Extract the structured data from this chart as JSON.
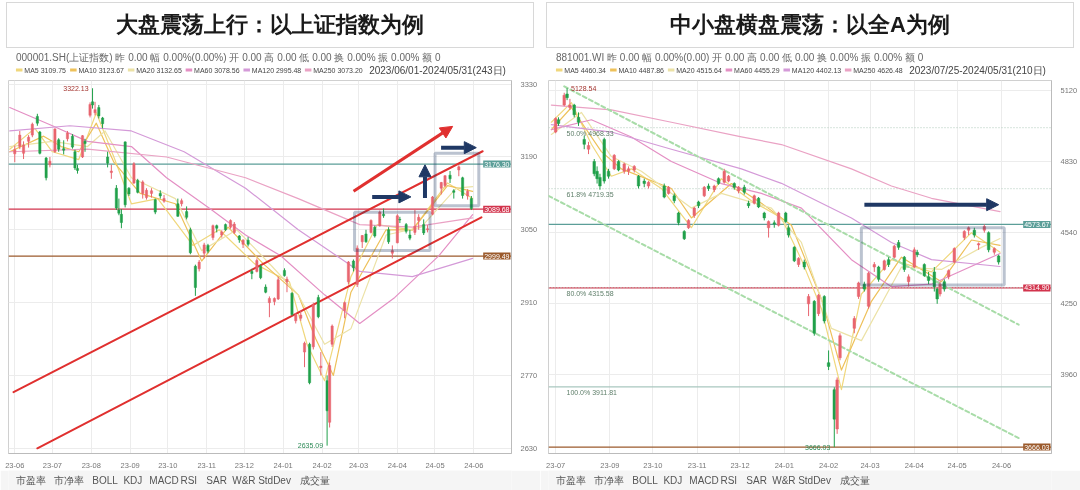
{
  "chart_data": [
    {
      "type": "candlestick",
      "title": "大盘震荡上行：以上证指数为例",
      "annotations": [
        "000001.SH(上证指数) 昨 0.00 幅 0.00%(0.00%) 开 0.00 高 0.00 低 0.00 换 0.00% 振 0.00% 额 0",
        "2023/06/01-2024/05/31(243日)",
        "市盈率",
        "市净率",
        "BOLL",
        "KDJ",
        "MACD",
        "RSI",
        "SAR",
        "W&R",
        "StdDev",
        "成交量",
        {
          "text": "3322.13",
          "x": "2023-08-02",
          "y": 3322.13
        },
        {
          "text": "2635.09",
          "x": "2024-02-05",
          "y": 2635.09
        }
      ],
      "x": [
        "2023-06-01",
        "2023-06-05",
        "2023-06-08",
        "2023-06-12",
        "2023-06-15",
        "2023-06-19",
        "2023-06-21",
        "2023-06-26",
        "2023-06-29",
        "2023-07-03",
        "2023-07-06",
        "2023-07-10",
        "2023-07-13",
        "2023-07-17",
        "2023-07-19",
        "2023-07-21",
        "2023-07-25",
        "2023-07-27",
        "2023-07-31",
        "2023-08-02",
        "2023-08-04",
        "2023-08-07",
        "2023-08-10",
        "2023-08-14",
        "2023-08-17",
        "2023-08-21",
        "2023-08-23",
        "2023-08-25",
        "2023-08-28",
        "2023-08-31",
        "2023-09-04",
        "2023-09-07",
        "2023-09-11",
        "2023-09-14",
        "2023-09-18",
        "2023-09-21",
        "2023-09-25",
        "2023-09-28",
        "2023-10-09",
        "2023-10-12",
        "2023-10-16",
        "2023-10-19",
        "2023-10-23",
        "2023-10-26",
        "2023-10-30",
        "2023-11-02",
        "2023-11-06",
        "2023-11-09",
        "2023-11-13",
        "2023-11-16",
        "2023-11-20",
        "2023-11-23",
        "2023-11-27",
        "2023-11-30",
        "2023-12-04",
        "2023-12-07",
        "2023-12-11",
        "2023-12-14",
        "2023-12-18",
        "2023-12-21",
        "2023-12-25",
        "2023-12-28",
        "2024-01-02",
        "2024-01-04",
        "2024-01-08",
        "2024-01-11",
        "2024-01-15",
        "2024-01-18",
        "2024-01-22",
        "2024-01-25",
        "2024-01-29",
        "2024-01-31",
        "2024-02-05",
        "2024-02-07",
        "2024-02-09",
        "2024-02-19",
        "2024-02-22",
        "2024-02-26",
        "2024-02-29",
        "2024-03-04",
        "2024-03-07",
        "2024-03-11",
        "2024-03-14",
        "2024-03-18",
        "2024-03-21",
        "2024-03-25",
        "2024-03-28",
        "2024-04-01",
        "2024-04-03",
        "2024-04-08",
        "2024-04-11",
        "2024-04-15",
        "2024-04-18",
        "2024-04-22",
        "2024-04-25",
        "2024-04-29",
        "2024-05-06",
        "2024-05-09",
        "2024-05-13",
        "2024-05-16",
        "2024-05-20",
        "2024-05-23",
        "2024-05-27",
        "2024-05-30"
      ],
      "ohlc": [
        [
          3196,
          3212,
          3180,
          3204
        ],
        [
          3210,
          3240,
          3205,
          3232
        ],
        [
          3197,
          3220,
          3186,
          3213
        ],
        [
          3220,
          3232,
          3208,
          3228
        ],
        [
          3232,
          3256,
          3228,
          3253
        ],
        [
          3268,
          3273,
          3250,
          3255
        ],
        [
          3238,
          3240,
          3195,
          3197
        ],
        [
          3188,
          3190,
          3145,
          3150
        ],
        [
          3175,
          3190,
          3170,
          3182
        ],
        [
          3200,
          3245,
          3198,
          3244
        ],
        [
          3223,
          3226,
          3200,
          3205
        ],
        [
          3206,
          3222,
          3195,
          3203
        ],
        [
          3225,
          3240,
          3220,
          3236
        ],
        [
          3230,
          3234,
          3206,
          3209
        ],
        [
          3200,
          3204,
          3165,
          3169
        ],
        [
          3168,
          3175,
          3158,
          3164
        ],
        [
          3190,
          3232,
          3188,
          3231
        ],
        [
          3220,
          3225,
          3200,
          3216
        ],
        [
          3270,
          3295,
          3266,
          3291
        ],
        [
          3296,
          3322.13,
          3283,
          3290
        ],
        [
          3275,
          3296,
          3270,
          3281
        ],
        [
          3285,
          3290,
          3264,
          3269
        ],
        [
          3265,
          3267,
          3245,
          3254
        ],
        [
          3190,
          3200,
          3170,
          3178
        ],
        [
          3160,
          3175,
          3148,
          3163
        ],
        [
          3130,
          3136,
          3088,
          3092
        ],
        [
          3088,
          3110,
          3078,
          3082
        ],
        [
          3080,
          3090,
          3053,
          3064
        ],
        [
          3219,
          3220,
          3093,
          3098
        ],
        [
          3130,
          3132,
          3115,
          3119
        ],
        [
          3140,
          3180,
          3138,
          3177
        ],
        [
          3145,
          3148,
          3120,
          3122
        ],
        [
          3120,
          3145,
          3110,
          3142
        ],
        [
          3112,
          3130,
          3108,
          3126
        ],
        [
          3120,
          3130,
          3112,
          3125
        ],
        [
          3108,
          3110,
          3080,
          3084
        ],
        [
          3120,
          3126,
          3110,
          3115
        ],
        [
          3105,
          3117,
          3102,
          3110
        ],
        [
          3100,
          3110,
          3075,
          3076
        ],
        [
          3100,
          3110,
          3095,
          3106
        ],
        [
          3085,
          3095,
          3070,
          3074
        ],
        [
          3050,
          3054,
          3003,
          3006
        ],
        [
          2980,
          2983,
          2923,
          2939
        ],
        [
          2975,
          2992,
          2970,
          2988
        ],
        [
          3005,
          3025,
          2995,
          3021
        ],
        [
          3020,
          3023,
          3005,
          3009
        ],
        [
          3035,
          3060,
          3030,
          3058
        ],
        [
          3058,
          3060,
          3045,
          3053
        ],
        [
          3040,
          3049,
          3035,
          3046
        ],
        [
          3060,
          3062,
          3048,
          3050
        ],
        [
          3055,
          3070,
          3052,
          3068
        ],
        [
          3045,
          3065,
          3042,
          3061
        ],
        [
          3038,
          3040,
          3025,
          3031
        ],
        [
          3022,
          3032,
          3015,
          3030
        ],
        [
          3030,
          3036,
          3018,
          3022
        ],
        [
          2970,
          2975,
          2955,
          2966
        ],
        [
          2970,
          2995,
          2968,
          2991
        ],
        [
          2980,
          2983,
          2955,
          2958
        ],
        [
          2940,
          2945,
          2928,
          2930
        ],
        [
          2910,
          2922,
          2882,
          2918
        ],
        [
          2912,
          2920,
          2905,
          2918
        ],
        [
          2917,
          2960,
          2915,
          2954
        ],
        [
          2972,
          2976,
          2960,
          2962
        ],
        [
          2950,
          2960,
          2930,
          2955
        ],
        [
          2928,
          2930,
          2885,
          2887
        ],
        [
          2875,
          2890,
          2870,
          2886
        ],
        [
          2880,
          2895,
          2875,
          2886
        ],
        [
          2815,
          2835,
          2786,
          2832
        ],
        [
          2830,
          2833,
          2753,
          2756
        ],
        [
          2825,
          2910,
          2820,
          2906
        ],
        [
          2920,
          2925,
          2880,
          2883
        ],
        [
          2785,
          2815,
          2770,
          2788
        ],
        [
          2760,
          2770,
          2635.09,
          2702
        ],
        [
          2680,
          2795,
          2670,
          2789
        ],
        [
          2830,
          2868,
          2825,
          2865
        ],
        [
          2895,
          2912,
          2880,
          2910
        ],
        [
          2950,
          2990,
          2945,
          2988
        ],
        [
          2990,
          2993,
          2970,
          2977
        ],
        [
          2945,
          3020,
          2940,
          3015
        ],
        [
          3027,
          3040,
          3015,
          3039
        ],
        [
          3042,
          3050,
          3025,
          3027
        ],
        [
          3045,
          3070,
          3043,
          3068
        ],
        [
          3055,
          3058,
          3035,
          3038
        ],
        [
          3058,
          3087,
          3056,
          3084
        ],
        [
          3080,
          3091,
          3073,
          3077
        ],
        [
          3050,
          3055,
          3023,
          3027
        ],
        [
          3005,
          3020,
          2995,
          3010
        ],
        [
          3025,
          3080,
          3024,
          3077
        ],
        [
          3070,
          3075,
          3063,
          3069
        ],
        [
          3060,
          3063,
          3043,
          3047
        ],
        [
          3040,
          3050,
          3030,
          3034
        ],
        [
          3045,
          3090,
          3040,
          3057
        ],
        [
          3068,
          3080,
          3050,
          3074
        ],
        [
          3060,
          3070,
          3040,
          3044
        ],
        [
          3050,
          3059,
          3045,
          3052
        ],
        [
          3080,
          3115,
          3078,
          3113
        ],
        [
          3130,
          3142,
          3118,
          3141
        ],
        [
          3135,
          3155,
          3132,
          3154
        ],
        [
          3155,
          3163,
          3140,
          3148
        ],
        [
          3125,
          3128,
          3110,
          3122
        ],
        [
          3165,
          3174,
          3153,
          3171
        ],
        [
          3150,
          3152,
          3110,
          3116
        ],
        [
          3115,
          3128,
          3108,
          3124
        ],
        [
          3110,
          3115,
          3088,
          3091
        ]
      ],
      "colors": [
        "#e8656f",
        "#e8656f",
        "#e8656f",
        "#e8656f",
        "#e8656f",
        "#20a04a",
        "#20a04a",
        "#20a04a",
        "#e8656f",
        "#e8656f",
        "#20a04a",
        "#20a04a",
        "#e8656f",
        "#20a04a",
        "#20a04a",
        "#20a04a",
        "#e8656f",
        "#20a04a",
        "#e8656f",
        "#20a04a",
        "#e8656f",
        "#20a04a",
        "#20a04a",
        "#20a04a",
        "#e8656f",
        "#20a04a",
        "#20a04a",
        "#20a04a",
        "#20a04a",
        "#20a04a",
        "#e8656f",
        "#20a04a",
        "#e8656f",
        "#e8656f",
        "#e8656f",
        "#20a04a",
        "#20a04a",
        "#e8656f",
        "#20a04a",
        "#e8656f",
        "#20a04a",
        "#20a04a",
        "#20a04a",
        "#e8656f",
        "#e8656f",
        "#20a04a",
        "#e8656f",
        "#20a04a",
        "#e8656f",
        "#20a04a",
        "#e8656f",
        "#e8656f",
        "#20a04a",
        "#e8656f",
        "#20a04a",
        "#20a04a",
        "#e8656f",
        "#20a04a",
        "#20a04a",
        "#e8656f",
        "#e8656f",
        "#e8656f",
        "#20a04a",
        "#e8656f",
        "#20a04a",
        "#e8656f",
        "#e8656f",
        "#e8656f",
        "#20a04a",
        "#e8656f",
        "#20a04a",
        "#e8656f",
        "#20a04a",
        "#e8656f",
        "#e8656f",
        "#e8656f",
        "#e8656f",
        "#20a04a",
        "#e8656f",
        "#e8656f",
        "#20a04a",
        "#e8656f",
        "#20a04a",
        "#e8656f",
        "#20a04a",
        "#20a04a",
        "#e8656f",
        "#e8656f",
        "#20a04a",
        "#20a04a",
        "#20a04a",
        "#e8656f",
        "#e8656f",
        "#20a04a",
        "#e8656f",
        "#e8656f",
        "#e8656f",
        "#e8656f",
        "#20a04a",
        "#20a04a",
        "#e8656f",
        "#20a04a",
        "#e8656f",
        "#20a04a"
      ],
      "series": [
        {
          "name": "MA5 3109.75",
          "type": "line",
          "color": "#f0d77c",
          "x": [
            "2023-05-28",
            "2023-06-17",
            "2023-07-01",
            "2023-07-22",
            "2023-08-05",
            "2023-08-19",
            "2023-09-02",
            "2023-09-23",
            "2023-10-21",
            "2023-11-11",
            "2023-12-09",
            "2024-01-06",
            "2024-01-20",
            "2024-02-03",
            "2024-02-24",
            "2024-03-16",
            "2024-04-13",
            "2024-05-11",
            "2024-05-31"
          ],
          "values": [
            3205,
            3245,
            3200,
            3185,
            3275,
            3190,
            3100,
            3110,
            3020,
            3050,
            2985,
            2950,
            2830,
            2760,
            2960,
            3060,
            3050,
            3140,
            3110
          ]
        },
        {
          "name": "MA10 3123.67",
          "type": "line",
          "color": "#eec15a",
          "x": [
            "2023-05-28",
            "2023-06-24",
            "2023-07-08",
            "2023-07-22",
            "2023-08-05",
            "2023-08-19",
            "2023-09-09",
            "2023-10-07",
            "2023-10-28",
            "2023-11-18",
            "2023-12-16",
            "2024-01-13",
            "2024-01-27",
            "2024-02-10",
            "2024-02-24",
            "2024-03-23",
            "2024-04-13",
            "2024-05-11",
            "2024-05-31"
          ],
          "values": [
            3200,
            3230,
            3210,
            3200,
            3255,
            3180,
            3120,
            3100,
            2990,
            3055,
            2985,
            2925,
            2840,
            2770,
            2930,
            3050,
            3050,
            3135,
            3124
          ]
        },
        {
          "name": "MA20 3132.65",
          "type": "line",
          "color": "#ece2a6",
          "x": [
            "2023-05-28",
            "2023-07-01",
            "2023-07-29",
            "2023-08-12",
            "2023-09-02",
            "2023-10-07",
            "2023-10-28",
            "2023-11-25",
            "2023-12-23",
            "2024-01-13",
            "2024-02-03",
            "2024-02-24",
            "2024-03-23",
            "2024-04-20",
            "2024-05-18",
            "2024-05-31"
          ],
          "values": [
            3210,
            3220,
            3210,
            3240,
            3150,
            3110,
            3010,
            3050,
            2980,
            2925,
            2830,
            2860,
            3040,
            3055,
            3130,
            3133
          ]
        },
        {
          "name": "MA60 3078.56",
          "type": "line",
          "color": "#e48fc4",
          "x": [
            "2023-05-28",
            "2023-07-01",
            "2023-07-29",
            "2023-09-02",
            "2023-09-30",
            "2023-11-04",
            "2023-12-02",
            "2023-12-30",
            "2024-02-03",
            "2024-03-02",
            "2024-03-30",
            "2024-05-04",
            "2024-05-31"
          ],
          "values": [
            3285,
            3250,
            3220,
            3210,
            3150,
            3090,
            3040,
            3000,
            2925,
            2870,
            2920,
            3000,
            3079
          ]
        },
        {
          "name": "MA120 2995.48",
          "type": "line",
          "color": "#d49ad8",
          "x": [
            "2023-05-28",
            "2023-07-15",
            "2023-09-02",
            "2023-10-14",
            "2023-12-02",
            "2024-01-13",
            "2024-03-02",
            "2024-04-13",
            "2024-05-31"
          ],
          "values": [
            3240,
            3250,
            3240,
            3200,
            3130,
            3050,
            2970,
            2960,
            2995
          ]
        },
        {
          "name": "MA250 3073.20",
          "type": "line",
          "color": "#eaa2c4",
          "x": [
            "2023-05-28",
            "2023-07-29",
            "2023-09-30",
            "2023-12-02",
            "2024-01-13",
            "2024-03-02",
            "2024-04-13",
            "2024-05-31"
          ],
          "values": [
            3200,
            3205,
            3190,
            3150,
            3110,
            3060,
            3055,
            3073
          ]
        },
        {
          "type": "line",
          "color": "#e0302f",
          "x": [
            "2023-05-31",
            "2024-06-08"
          ],
          "values": [
            2738,
            3201
          ]
        },
        {
          "type": "line",
          "color": "#e0302f",
          "x": [
            "2023-06-19",
            "2024-06-07"
          ],
          "values": [
            2630,
            3074
          ]
        }
      ],
      "xlim": [
        "2023-05-27",
        "2024-07-01"
      ],
      "xticks": [
        {
          "value": "2023-06-01",
          "label": "23-06"
        },
        {
          "value": "2023-07-01",
          "label": "23-07"
        },
        {
          "value": "2023-08-01",
          "label": "23-08"
        },
        {
          "value": "2023-09-01",
          "label": "23-09"
        },
        {
          "value": "2023-10-01",
          "label": "23-10"
        },
        {
          "value": "2023-11-01",
          "label": "23-11"
        },
        {
          "value": "2023-12-01",
          "label": "23-12"
        },
        {
          "value": "2024-01-01",
          "label": "24-01"
        },
        {
          "value": "2024-02-01",
          "label": "24-02"
        },
        {
          "value": "2024-03-01",
          "label": "24-03"
        },
        {
          "value": "2024-04-01",
          "label": "24-04"
        },
        {
          "value": "2024-05-01",
          "label": "24-05"
        },
        {
          "value": "2024-06-01",
          "label": "24-06"
        }
      ],
      "ylim": [
        2620,
        3337
      ],
      "yticks": [
        2630,
        2770,
        2910,
        3050,
        3190,
        3330
      ],
      "ref_lines": [
        {
          "axis": "y",
          "value": 3176.3,
          "label": "3176.30",
          "color": "#5b9e98"
        },
        {
          "axis": "y",
          "value": 3089.68,
          "label": "3089.68",
          "color": "#d2334c"
        },
        {
          "axis": "y",
          "value": 2999.49,
          "label": "2999.49",
          "color": "#9b5a2c"
        }
      ],
      "grid": true,
      "legend": "top left"
    },
    {
      "type": "candlestick",
      "title": "中小盘横盘震荡：以全A为例",
      "annotations": [
        "881001.WI 昨 0.00 幅 0.00%(0.00) 开 0.00 高 0.00 低 0.00 换 0.00% 振 0.00% 额 0",
        "2023/07/25-2024/05/31(210日)",
        "市盈率",
        "市净率",
        "BOLL",
        "KDJ",
        "MACD",
        "RSI",
        "SAR",
        "W&R",
        "StdDev",
        "成交量",
        {
          "text": "5128.54",
          "x": "2023-08-02",
          "y": 5128.54
        },
        {
          "text": "3666.03",
          "x": "2024-02-05",
          "y": 3666.03
        }
      ],
      "x": [
        "2023-07-25",
        "2023-07-27",
        "2023-07-31",
        "2023-08-02",
        "2023-08-04",
        "2023-08-07",
        "2023-08-10",
        "2023-08-14",
        "2023-08-17",
        "2023-08-21",
        "2023-08-23",
        "2023-08-25",
        "2023-08-28",
        "2023-08-31",
        "2023-09-04",
        "2023-09-07",
        "2023-09-11",
        "2023-09-14",
        "2023-09-18",
        "2023-09-21",
        "2023-09-25",
        "2023-09-28",
        "2023-10-09",
        "2023-10-12",
        "2023-10-16",
        "2023-10-19",
        "2023-10-23",
        "2023-10-26",
        "2023-10-30",
        "2023-11-02",
        "2023-11-06",
        "2023-11-09",
        "2023-11-13",
        "2023-11-16",
        "2023-11-20",
        "2023-11-23",
        "2023-11-27",
        "2023-11-30",
        "2023-12-04",
        "2023-12-07",
        "2023-12-11",
        "2023-12-14",
        "2023-12-18",
        "2023-12-21",
        "2023-12-25",
        "2023-12-28",
        "2024-01-02",
        "2024-01-04",
        "2024-01-08",
        "2024-01-11",
        "2024-01-15",
        "2024-01-18",
        "2024-01-22",
        "2024-01-25",
        "2024-01-29",
        "2024-02-01",
        "2024-02-05",
        "2024-02-07",
        "2024-02-09",
        "2024-02-19",
        "2024-02-22",
        "2024-02-26",
        "2024-02-29",
        "2024-03-04",
        "2024-03-07",
        "2024-03-11",
        "2024-03-14",
        "2024-03-18",
        "2024-03-21",
        "2024-03-25",
        "2024-03-28",
        "2024-04-01",
        "2024-04-03",
        "2024-04-08",
        "2024-04-11",
        "2024-04-15",
        "2024-04-17",
        "2024-04-19",
        "2024-04-22",
        "2024-04-25",
        "2024-04-29",
        "2024-05-06",
        "2024-05-09",
        "2024-05-13",
        "2024-05-16",
        "2024-05-20",
        "2024-05-23",
        "2024-05-27",
        "2024-05-30"
      ],
      "ohlc": [
        [
          4950,
          5010,
          4945,
          5005
        ],
        [
          5000,
          5010,
          4975,
          4985
        ],
        [
          5060,
          5110,
          5055,
          5100
        ],
        [
          5105,
          5128.54,
          5080,
          5090
        ],
        [
          5050,
          5085,
          5040,
          5060
        ],
        [
          5060,
          5065,
          5010,
          5020
        ],
        [
          5010,
          5030,
          4975,
          4990
        ],
        [
          4920,
          4935,
          4880,
          4900
        ],
        [
          4880,
          4910,
          4860,
          4895
        ],
        [
          4830,
          4840,
          4770,
          4780
        ],
        [
          4790,
          4810,
          4740,
          4760
        ],
        [
          4765,
          4780,
          4715,
          4730
        ],
        [
          4920,
          4927,
          4740,
          4750
        ],
        [
          4790,
          4800,
          4760,
          4770
        ],
        [
          4800,
          4860,
          4795,
          4855
        ],
        [
          4830,
          4835,
          4790,
          4795
        ],
        [
          4790,
          4825,
          4780,
          4820
        ],
        [
          4790,
          4810,
          4775,
          4800
        ],
        [
          4795,
          4815,
          4785,
          4810
        ],
        [
          4770,
          4775,
          4720,
          4730
        ],
        [
          4750,
          4760,
          4725,
          4740
        ],
        [
          4730,
          4750,
          4720,
          4745
        ],
        [
          4730,
          4740,
          4680,
          4685
        ],
        [
          4700,
          4730,
          4695,
          4725
        ],
        [
          4690,
          4700,
          4660,
          4670
        ],
        [
          4620,
          4625,
          4570,
          4580
        ],
        [
          4545,
          4550,
          4510,
          4515
        ],
        [
          4560,
          4595,
          4555,
          4590
        ],
        [
          4610,
          4645,
          4600,
          4640
        ],
        [
          4665,
          4670,
          4640,
          4650
        ],
        [
          4690,
          4730,
          4685,
          4725
        ],
        [
          4730,
          4740,
          4710,
          4720
        ],
        [
          4715,
          4735,
          4705,
          4730
        ],
        [
          4760,
          4765,
          4735,
          4740
        ],
        [
          4745,
          4800,
          4740,
          4790
        ],
        [
          4750,
          4775,
          4745,
          4770
        ],
        [
          4740,
          4745,
          4715,
          4725
        ],
        [
          4710,
          4730,
          4700,
          4725
        ],
        [
          4725,
          4735,
          4695,
          4705
        ],
        [
          4660,
          4670,
          4640,
          4650
        ],
        [
          4660,
          4695,
          4655,
          4690
        ],
        [
          4680,
          4685,
          4640,
          4645
        ],
        [
          4620,
          4625,
          4590,
          4600
        ],
        [
          4560,
          4590,
          4520,
          4585
        ],
        [
          4580,
          4590,
          4560,
          4575
        ],
        [
          4570,
          4625,
          4565,
          4620
        ],
        [
          4620,
          4625,
          4580,
          4585
        ],
        [
          4560,
          4570,
          4520,
          4530
        ],
        [
          4480,
          4485,
          4420,
          4425
        ],
        [
          4410,
          4440,
          4400,
          4435
        ],
        [
          4420,
          4430,
          4390,
          4400
        ],
        [
          4250,
          4290,
          4200,
          4280
        ],
        [
          4260,
          4265,
          4120,
          4130
        ],
        [
          4210,
          4290,
          4200,
          4285
        ],
        [
          4280,
          4285,
          4170,
          4180
        ],
        [
          4010,
          4060,
          3980,
          3995
        ],
        [
          3900,
          3910,
          3666.03,
          3780
        ],
        [
          3740,
          3950,
          3720,
          3940
        ],
        [
          4030,
          4130,
          4020,
          4120
        ],
        [
          4150,
          4200,
          4130,
          4190
        ],
        [
          4280,
          4340,
          4270,
          4335
        ],
        [
          4330,
          4340,
          4300,
          4310
        ],
        [
          4240,
          4380,
          4230,
          4375
        ],
        [
          4400,
          4420,
          4380,
          4410
        ],
        [
          4400,
          4405,
          4340,
          4350
        ],
        [
          4390,
          4430,
          4385,
          4425
        ],
        [
          4430,
          4440,
          4400,
          4410
        ],
        [
          4440,
          4490,
          4435,
          4485
        ],
        [
          4500,
          4510,
          4470,
          4480
        ],
        [
          4440,
          4445,
          4380,
          4390
        ],
        [
          4340,
          4370,
          4320,
          4360
        ],
        [
          4400,
          4480,
          4395,
          4470
        ],
        [
          4460,
          4470,
          4440,
          4450
        ],
        [
          4410,
          4415,
          4360,
          4365
        ],
        [
          4360,
          4380,
          4330,
          4345
        ],
        [
          4380,
          4400,
          4300,
          4320
        ],
        [
          4310,
          4315,
          4250,
          4270
        ],
        [
          4290,
          4340,
          4280,
          4330
        ],
        [
          4340,
          4350,
          4300,
          4310
        ],
        [
          4360,
          4390,
          4350,
          4385
        ],
        [
          4420,
          4480,
          4415,
          4475
        ],
        [
          4520,
          4550,
          4510,
          4545
        ],
        [
          4550,
          4565,
          4530,
          4560
        ],
        [
          4550,
          4560,
          4520,
          4530
        ],
        [
          4490,
          4500,
          4470,
          4495
        ],
        [
          4550,
          4573.67,
          4540,
          4565
        ],
        [
          4540,
          4545,
          4460,
          4470
        ],
        [
          4460,
          4480,
          4450,
          4475
        ],
        [
          4445,
          4450,
          4410,
          4420
        ]
      ],
      "colors": [
        "#e8656f",
        "#20a04a",
        "#e8656f",
        "#20a04a",
        "#e8656f",
        "#20a04a",
        "#20a04a",
        "#20a04a",
        "#e8656f",
        "#20a04a",
        "#20a04a",
        "#20a04a",
        "#20a04a",
        "#20a04a",
        "#e8656f",
        "#20a04a",
        "#e8656f",
        "#e8656f",
        "#e8656f",
        "#20a04a",
        "#20a04a",
        "#e8656f",
        "#20a04a",
        "#e8656f",
        "#20a04a",
        "#20a04a",
        "#20a04a",
        "#e8656f",
        "#e8656f",
        "#20a04a",
        "#e8656f",
        "#20a04a",
        "#e8656f",
        "#20a04a",
        "#e8656f",
        "#e8656f",
        "#20a04a",
        "#e8656f",
        "#20a04a",
        "#20a04a",
        "#e8656f",
        "#20a04a",
        "#20a04a",
        "#e8656f",
        "#20a04a",
        "#e8656f",
        "#20a04a",
        "#20a04a",
        "#20a04a",
        "#e8656f",
        "#20a04a",
        "#e8656f",
        "#20a04a",
        "#e8656f",
        "#20a04a",
        "#20a04a",
        "#20a04a",
        "#e8656f",
        "#e8656f",
        "#e8656f",
        "#e8656f",
        "#20a04a",
        "#e8656f",
        "#e8656f",
        "#20a04a",
        "#e8656f",
        "#20a04a",
        "#e8656f",
        "#20a04a",
        "#20a04a",
        "#e8656f",
        "#e8656f",
        "#20a04a",
        "#20a04a",
        "#20a04a",
        "#20a04a",
        "#20a04a",
        "#e8656f",
        "#20a04a",
        "#e8656f",
        "#e8656f",
        "#e8656f",
        "#e8656f",
        "#20a04a",
        "#e8656f",
        "#e8656f",
        "#20a04a",
        "#e8656f",
        "#20a04a"
      ],
      "series": [
        {
          "name": "MA5 4460.34",
          "type": "line",
          "color": "#f0d77c",
          "x": [
            "2023-07-22",
            "2023-08-05",
            "2023-08-19",
            "2023-09-02",
            "2023-09-16",
            "2023-10-07",
            "2023-10-28",
            "2023-11-18",
            "2023-12-09",
            "2023-12-30",
            "2024-01-13",
            "2024-01-27",
            "2024-02-10",
            "2024-02-24",
            "2024-03-16",
            "2024-04-13",
            "2024-05-11",
            "2024-05-31"
          ],
          "values": [
            4990,
            5070,
            4900,
            4770,
            4800,
            4720,
            4560,
            4760,
            4670,
            4600,
            4430,
            4230,
            3900,
            4290,
            4430,
            4380,
            4540,
            4460
          ]
        },
        {
          "name": "MA10 4487.86",
          "type": "line",
          "color": "#eec15a",
          "x": [
            "2023-07-22",
            "2023-08-05",
            "2023-08-26",
            "2023-09-09",
            "2023-10-14",
            "2023-10-28",
            "2023-11-25",
            "2023-12-16",
            "2024-01-06",
            "2024-01-27",
            "2024-02-10",
            "2024-03-02",
            "2024-03-23",
            "2024-04-20",
            "2024-05-11",
            "2024-05-31"
          ],
          "values": [
            4960,
            5050,
            4870,
            4800,
            4720,
            4600,
            4740,
            4660,
            4570,
            4270,
            3980,
            4260,
            4440,
            4340,
            4510,
            4488
          ]
        },
        {
          "name": "MA20 4515.64",
          "type": "line",
          "color": "#ece2a6",
          "x": [
            "2023-07-22",
            "2023-08-12",
            "2023-09-02",
            "2023-09-23",
            "2023-10-28",
            "2023-11-18",
            "2023-12-23",
            "2024-01-13",
            "2024-02-03",
            "2024-02-24",
            "2024-03-23",
            "2024-04-20",
            "2024-05-18",
            "2024-05-31"
          ],
          "values": [
            4940,
            5030,
            4850,
            4790,
            4640,
            4700,
            4640,
            4500,
            4150,
            4100,
            4400,
            4390,
            4480,
            4516
          ]
        },
        {
          "name": "MA60 4455.29",
          "type": "line",
          "color": "#e48fc4",
          "x": [
            "2023-07-22",
            "2023-08-19",
            "2023-09-16",
            "2023-10-14",
            "2023-11-18",
            "2023-12-16",
            "2024-01-13",
            "2024-02-17",
            "2024-03-16",
            "2024-04-13",
            "2024-05-31"
          ],
          "values": [
            4960,
            5000,
            4930,
            4830,
            4740,
            4700,
            4640,
            4430,
            4320,
            4330,
            4455
          ]
        },
        {
          "name": "MA120 4402.13",
          "type": "line",
          "color": "#d49ad8",
          "x": [
            "2023-07-22",
            "2023-09-02",
            "2023-10-14",
            "2023-12-02",
            "2023-12-30",
            "2024-02-17",
            "2024-03-16",
            "2024-04-13",
            "2024-05-31"
          ],
          "values": [
            4980,
            4950,
            4880,
            4800,
            4741,
            4600,
            4500,
            4430,
            4402
          ]
        },
        {
          "name": "MA250 4626.48",
          "type": "line",
          "color": "#eaa2c4",
          "x": [
            "2023-07-22",
            "2023-09-02",
            "2023-10-14",
            "2023-12-02",
            "2023-12-30",
            "2024-02-17",
            "2024-03-16",
            "2024-04-13",
            "2024-05-31"
          ],
          "values": [
            5060,
            5040,
            4990,
            4930,
            4899,
            4800,
            4730,
            4680,
            4626
          ]
        },
        {
          "type": "line",
          "color": "#a8dca8",
          "line_style": "dashed",
          "x": [
            "2023-07-31",
            "2024-06-13"
          ],
          "values": [
            5136,
            4165
          ]
        },
        {
          "type": "line",
          "color": "#a8dca8",
          "line_style": "dashed",
          "x": [
            "2023-07-20",
            "2024-06-13"
          ],
          "values": [
            4690,
            3703
          ]
        }
      ],
      "xlim": [
        "2023-07-20",
        "2024-07-06"
      ],
      "xticks": [
        {
          "value": "2023-07-25",
          "label": "23-07"
        },
        {
          "value": "2023-09-01",
          "label": "23-09"
        },
        {
          "value": "2023-10-01",
          "label": "23-10"
        },
        {
          "value": "2023-11-01",
          "label": "23-11"
        },
        {
          "value": "2023-12-01",
          "label": "23-12"
        },
        {
          "value": "2024-01-01",
          "label": "24-01"
        },
        {
          "value": "2024-02-01",
          "label": "24-02"
        },
        {
          "value": "2024-03-01",
          "label": "24-03"
        },
        {
          "value": "2024-04-01",
          "label": "24-04"
        },
        {
          "value": "2024-05-01",
          "label": "24-05"
        },
        {
          "value": "2024-06-01",
          "label": "24-06"
        }
      ],
      "ylim": [
        3640,
        5160
      ],
      "yticks": [
        3960,
        4250,
        4540,
        4830,
        5120
      ],
      "ref_lines": [
        {
          "axis": "y",
          "value": 4573.67,
          "label": "4573.67",
          "color": "#5b9e98"
        },
        {
          "axis": "y",
          "value": 4314.9,
          "label": "4314.90",
          "color": "#d2334c"
        },
        {
          "axis": "y",
          "value": 3666.03,
          "label": "3666.03",
          "color": "#9b5a2c"
        },
        {
          "axis": "y",
          "value": 4968.33,
          "label": "50.0% 4968.33",
          "color": "#bcd3c6",
          "line_style": "dotted"
        },
        {
          "axis": "y",
          "value": 4719.35,
          "label": "61.8% 4719.35",
          "color": "#bcd3c6",
          "line_style": "dotted"
        },
        {
          "axis": "y",
          "value": 4315.58,
          "label": "80.0% 4315.58",
          "color": "#bcd3c6",
          "line_style": "dotted"
        },
        {
          "axis": "y",
          "value": 3911.81,
          "label": "100.0% 3911.81",
          "color": "#a9c7bf",
          "line_style": "solid"
        }
      ],
      "grid": true,
      "legend": "top left"
    }
  ]
}
